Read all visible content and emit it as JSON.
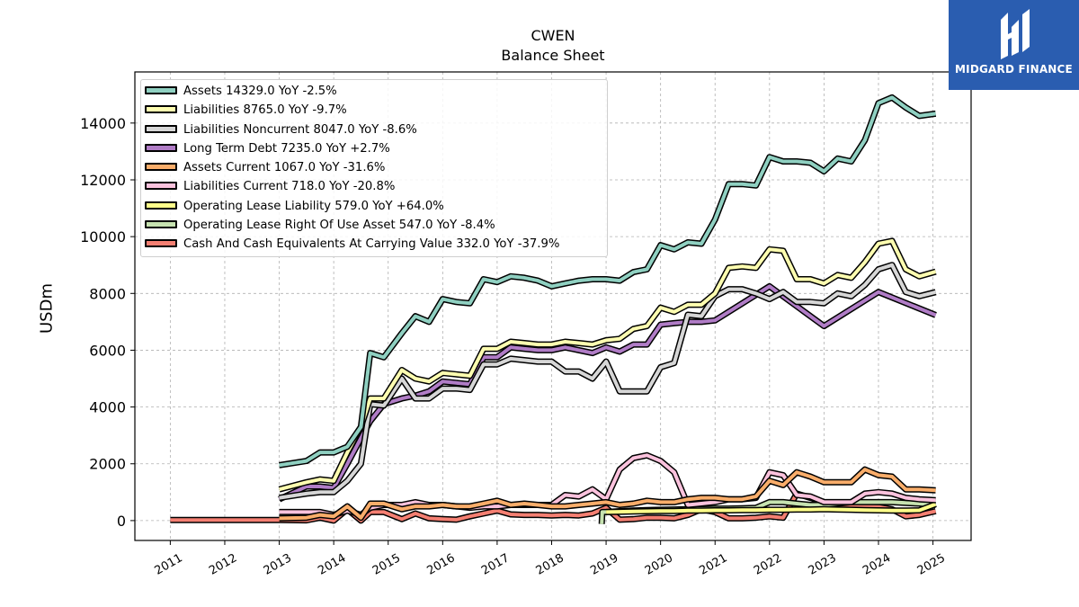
{
  "header": {
    "title": "CWEN",
    "subtitle": "Balance  Sheet"
  },
  "logo": {
    "text": "MIDGARD FINANCE",
    "background": "#2a5db0"
  },
  "chart_data": {
    "type": "line",
    "ylabel": "USDm",
    "xlabel": "",
    "ylim": [
      -700,
      15800
    ],
    "xlim": [
      2010.35,
      2025.7
    ],
    "yticks": [
      "0",
      "2000",
      "4000",
      "6000",
      "8000",
      "10000",
      "12000",
      "14000"
    ],
    "xticks": [
      "2011",
      "2012",
      "2013",
      "2014",
      "2015",
      "2016",
      "2017",
      "2018",
      "2019",
      "2020",
      "2021",
      "2022",
      "2023",
      "2024",
      "2025"
    ],
    "grid": true,
    "legend_position": "top-left",
    "series": [
      {
        "name": "Assets  14329.0 YoY -2.5%",
        "color": "#8fd0c1",
        "x": [
          2013.0,
          2013.5,
          2013.75,
          2014.0,
          2014.25,
          2014.5,
          2014.67,
          2014.92,
          2015.25,
          2015.5,
          2015.75,
          2016.0,
          2016.25,
          2016.5,
          2016.75,
          2017.0,
          2017.25,
          2017.5,
          2017.75,
          2018.0,
          2018.25,
          2018.5,
          2018.75,
          2019.0,
          2019.25,
          2019.5,
          2019.75,
          2020.0,
          2020.25,
          2020.5,
          2020.75,
          2021.0,
          2021.25,
          2021.5,
          2021.75,
          2022.0,
          2022.25,
          2022.5,
          2022.75,
          2023.0,
          2023.25,
          2023.5,
          2023.75,
          2024.0,
          2024.25,
          2024.5,
          2024.75,
          2025.05
        ],
        "y": [
          1950,
          2100,
          2400,
          2400,
          2600,
          3300,
          5900,
          5750,
          6600,
          7200,
          7000,
          7800,
          7700,
          7650,
          8500,
          8400,
          8600,
          8550,
          8450,
          8250,
          8350,
          8450,
          8500,
          8500,
          8450,
          8750,
          8850,
          9700,
          9550,
          9800,
          9750,
          10600,
          11850,
          11850,
          11800,
          12800,
          12650,
          12650,
          12600,
          12300,
          12750,
          12650,
          13400,
          14700,
          14900,
          14550,
          14250,
          14329
        ]
      },
      {
        "name": "Liabilities  8765.0 YoY -9.7%",
        "color": "#fdfdb0",
        "x": [
          2013.0,
          2013.5,
          2013.75,
          2014.0,
          2014.25,
          2014.5,
          2014.67,
          2014.92,
          2015.25,
          2015.5,
          2015.75,
          2016.0,
          2016.25,
          2016.5,
          2016.75,
          2017.0,
          2017.25,
          2017.5,
          2017.75,
          2018.0,
          2018.25,
          2018.5,
          2018.75,
          2019.0,
          2019.25,
          2019.5,
          2019.75,
          2020.0,
          2020.25,
          2020.5,
          2020.75,
          2021.0,
          2021.25,
          2021.5,
          2021.75,
          2022.0,
          2022.25,
          2022.5,
          2022.75,
          2023.0,
          2023.25,
          2023.5,
          2023.75,
          2024.0,
          2024.25,
          2024.5,
          2024.75,
          2025.05
        ],
        "y": [
          1100,
          1350,
          1450,
          1400,
          2400,
          3300,
          4300,
          4300,
          5300,
          5000,
          4900,
          5200,
          5150,
          5100,
          6050,
          6050,
          6300,
          6250,
          6200,
          6200,
          6300,
          6250,
          6200,
          6350,
          6400,
          6750,
          6850,
          7500,
          7350,
          7600,
          7600,
          8000,
          8900,
          8950,
          8900,
          9550,
          9500,
          8500,
          8500,
          8350,
          8650,
          8550,
          9100,
          9750,
          9850,
          8850,
          8600,
          8765
        ]
      },
      {
        "name": "Liabilities Noncurrent  8047.0 YoY -8.6%",
        "color": "#d6d6d6",
        "x": [
          2013.0,
          2013.5,
          2013.75,
          2014.0,
          2014.25,
          2014.5,
          2014.67,
          2014.92,
          2015.25,
          2015.5,
          2015.75,
          2016.0,
          2016.25,
          2016.5,
          2016.75,
          2017.0,
          2017.25,
          2017.5,
          2017.75,
          2018.0,
          2018.25,
          2018.5,
          2018.75,
          2019.0,
          2019.25,
          2019.5,
          2019.75,
          2020.0,
          2020.25,
          2020.5,
          2020.75,
          2021.0,
          2021.25,
          2021.5,
          2021.75,
          2022.0,
          2022.25,
          2022.5,
          2022.75,
          2023.0,
          2023.25,
          2023.5,
          2023.75,
          2024.0,
          2024.25,
          2024.5,
          2024.75,
          2025.05
        ],
        "y": [
          800,
          950,
          1000,
          1000,
          1400,
          2000,
          4100,
          4050,
          5000,
          4300,
          4300,
          4650,
          4650,
          4600,
          5500,
          5500,
          5700,
          5650,
          5600,
          5600,
          5250,
          5250,
          5000,
          5600,
          4550,
          4550,
          4550,
          5400,
          5550,
          7250,
          7200,
          7900,
          8150,
          8150,
          8000,
          7800,
          8050,
          7700,
          7700,
          7650,
          8000,
          7900,
          8300,
          8850,
          9000,
          8050,
          7900,
          8047
        ]
      },
      {
        "name": "Long Term Debt  7235.0 YoY +2.7%",
        "color": "#b07cc6",
        "x": [
          2013.0,
          2013.5,
          2013.75,
          2014.0,
          2014.25,
          2014.5,
          2014.67,
          2014.92,
          2015.25,
          2015.5,
          2015.75,
          2016.0,
          2016.25,
          2016.5,
          2016.75,
          2017.0,
          2017.25,
          2017.5,
          2017.75,
          2018.0,
          2018.25,
          2018.5,
          2018.75,
          2019.0,
          2019.25,
          2019.5,
          2019.75,
          2020.0,
          2020.25,
          2020.5,
          2020.75,
          2021.0,
          2022.0,
          2023.0,
          2024.0,
          2025.05
        ],
        "y": [
          750,
          1200,
          1200,
          1150,
          2000,
          2900,
          3500,
          4100,
          4300,
          4400,
          4550,
          4900,
          4850,
          4800,
          5750,
          5750,
          6100,
          6050,
          6000,
          6000,
          6100,
          6000,
          5900,
          6100,
          5950,
          6200,
          6200,
          6900,
          6950,
          7000,
          7000,
          7050,
          8250,
          6850,
          8050,
          7235
        ]
      },
      {
        "name": "Assets Current  1067.0 YoY -31.6%",
        "color": "#f9ad6a",
        "x": [
          2013.0,
          2013.5,
          2013.75,
          2014.0,
          2014.25,
          2014.5,
          2014.67,
          2014.92,
          2015.25,
          2015.5,
          2015.75,
          2016.0,
          2016.25,
          2016.5,
          2016.75,
          2017.0,
          2017.25,
          2017.5,
          2017.75,
          2018.0,
          2018.25,
          2018.5,
          2018.75,
          2019.0,
          2019.25,
          2019.5,
          2019.75,
          2020.0,
          2020.25,
          2020.5,
          2020.75,
          2021.0,
          2021.25,
          2021.5,
          2021.75,
          2022.0,
          2022.25,
          2022.5,
          2022.75,
          2023.0,
          2023.25,
          2023.5,
          2023.75,
          2024.0,
          2024.25,
          2024.5,
          2024.75,
          2025.05
        ],
        "y": [
          80,
          100,
          200,
          150,
          500,
          100,
          600,
          600,
          400,
          500,
          500,
          550,
          500,
          500,
          600,
          700,
          550,
          600,
          550,
          500,
          500,
          550,
          600,
          650,
          550,
          600,
          700,
          650,
          650,
          750,
          800,
          800,
          750,
          750,
          850,
          1400,
          1250,
          1700,
          1550,
          1350,
          1350,
          1350,
          1800,
          1600,
          1550,
          1100,
          1100,
          1067
        ]
      },
      {
        "name": "Liabilities Current  718.0 YoY -20.8%",
        "color": "#fbc2dd",
        "x": [
          2013.0,
          2013.5,
          2013.75,
          2014.0,
          2014.25,
          2014.5,
          2014.67,
          2014.92,
          2015.25,
          2015.5,
          2015.75,
          2016.0,
          2016.25,
          2016.5,
          2016.75,
          2017.0,
          2017.25,
          2017.5,
          2017.75,
          2018.0,
          2018.25,
          2018.5,
          2018.75,
          2019.0,
          2019.25,
          2019.5,
          2019.75,
          2020.0,
          2020.25,
          2020.5,
          2020.75,
          2021.0,
          2021.25,
          2021.5,
          2021.75,
          2022.0,
          2022.25,
          2022.5,
          2022.75,
          2023.0,
          2023.25,
          2023.5,
          2023.75,
          2024.0,
          2024.25,
          2024.5,
          2024.75,
          2025.05
        ],
        "y": [
          300,
          300,
          300,
          200,
          350,
          200,
          450,
          550,
          550,
          650,
          550,
          550,
          500,
          450,
          500,
          500,
          550,
          550,
          550,
          550,
          900,
          850,
          1100,
          750,
          1800,
          2200,
          2300,
          2100,
          1700,
          550,
          600,
          650,
          750,
          750,
          800,
          1700,
          1600,
          900,
          850,
          650,
          650,
          650,
          950,
          1000,
          950,
          800,
          750,
          718
        ]
      },
      {
        "name": "Operating Lease Liability  579.0 YoY +64.0%",
        "color": "#fefe8a",
        "x": [
          2019.0,
          2019.25,
          2019.5,
          2019.75,
          2020.0,
          2020.25,
          2020.5,
          2020.75,
          2021.0,
          2021.25,
          2021.5,
          2021.75,
          2022.0,
          2022.25,
          2022.5,
          2022.75,
          2023.0,
          2023.25,
          2023.5,
          2023.75,
          2024.0,
          2024.25,
          2024.5,
          2024.75,
          2025.05
        ],
        "y": [
          300,
          310,
          320,
          330,
          340,
          340,
          350,
          350,
          360,
          360,
          370,
          370,
          380,
          380,
          390,
          390,
          400,
          390,
          380,
          370,
          360,
          350,
          350,
          360,
          579
        ]
      },
      {
        "name": "Operating Lease Right Of Use Asset  547.0 YoY -8.4%",
        "color": "#c6e2b0",
        "x": [
          2018.92,
          2018.93,
          2019.0,
          2019.25,
          2019.5,
          2019.75,
          2020.0,
          2020.25,
          2020.5,
          2020.75,
          2021.0,
          2021.25,
          2021.5,
          2021.75,
          2022.0,
          2022.25,
          2022.5,
          2022.75,
          2023.0,
          2023.25,
          2023.5,
          2023.75,
          2024.0,
          2024.25,
          2024.5,
          2024.75,
          2025.05
        ],
        "y": [
          -120,
          300,
          300,
          330,
          350,
          370,
          380,
          390,
          400,
          410,
          420,
          420,
          430,
          450,
          650,
          650,
          600,
          550,
          550,
          600,
          650,
          650,
          650,
          650,
          620,
          600,
          547
        ]
      },
      {
        "name": "Cash And Cash Equivalents At Carrying Value  332.0 YoY -37.9%",
        "color": "#f47f72",
        "x": [
          2011.0,
          2011.5,
          2012.0,
          2012.5,
          2013.0,
          2013.5,
          2013.75,
          2014.0,
          2014.25,
          2014.5,
          2014.67,
          2014.92,
          2015.25,
          2015.5,
          2015.75,
          2016.0,
          2016.25,
          2016.5,
          2016.75,
          2017.0,
          2017.25,
          2017.5,
          2017.75,
          2018.0,
          2018.25,
          2018.5,
          2018.75,
          2019.0,
          2019.25,
          2019.5,
          2019.75,
          2020.0,
          2020.25,
          2020.5,
          2020.75,
          2021.0,
          2021.25,
          2021.5,
          2021.75,
          2022.0,
          2022.25,
          2022.5,
          2022.75,
          2023.0,
          2023.25,
          2023.5,
          2023.75,
          2024.0,
          2024.25,
          2024.5,
          2024.75,
          2025.05
        ],
        "y": [
          20,
          20,
          20,
          20,
          20,
          10,
          100,
          0,
          400,
          0,
          300,
          300,
          50,
          250,
          80,
          50,
          30,
          150,
          250,
          350,
          220,
          200,
          200,
          180,
          200,
          180,
          250,
          450,
          30,
          50,
          100,
          100,
          80,
          200,
          400,
          300,
          80,
          80,
          100,
          150,
          100,
          950,
          800,
          650,
          550,
          500,
          500,
          480,
          400,
          150,
          200,
          332
        ]
      }
    ]
  }
}
